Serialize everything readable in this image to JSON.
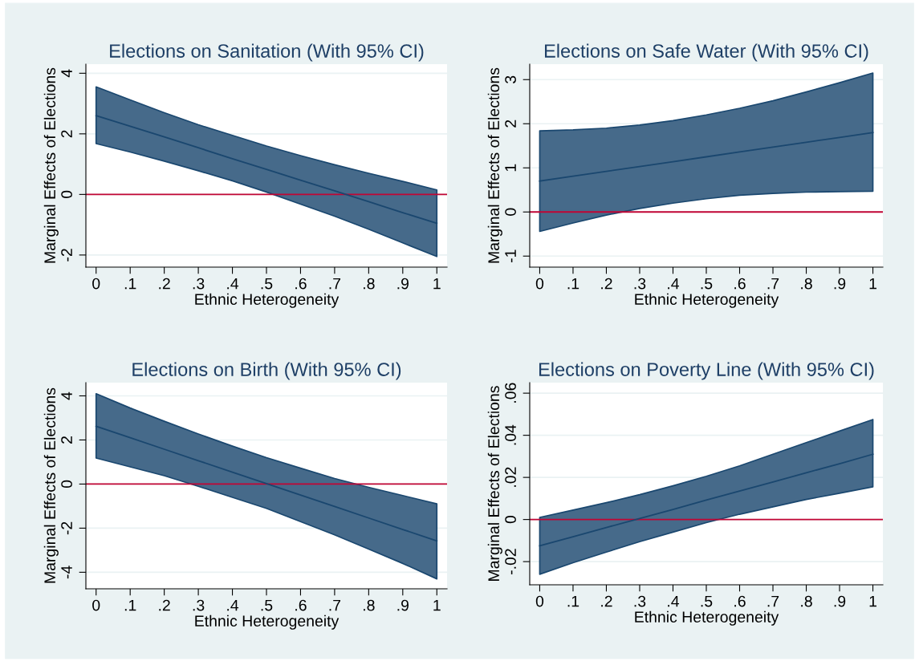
{
  "chart_data": [
    {
      "type": "line",
      "title": "Elections on Sanitation (With 95% CI)",
      "xlabel": "Ethnic Heterogeneity",
      "ylabel": "Marginal Effects of Elections",
      "x": [
        0,
        0.1,
        0.2,
        0.3,
        0.4,
        0.5,
        0.6,
        0.7,
        0.8,
        0.9,
        1
      ],
      "series": [
        {
          "color": "#1a476f",
          "values": [
            2.6,
            2.25,
            1.9,
            1.54,
            1.18,
            0.83,
            0.47,
            0.12,
            -0.24,
            -0.6,
            -0.95
          ],
          "upper": [
            3.55,
            3.12,
            2.7,
            2.3,
            1.95,
            1.6,
            1.28,
            0.98,
            0.7,
            0.43,
            0.15
          ],
          "lower": [
            1.68,
            1.4,
            1.1,
            0.78,
            0.45,
            0.08,
            -0.32,
            -0.72,
            -1.15,
            -1.6,
            -2.05
          ]
        }
      ],
      "xlim": [
        -0.03,
        1.03
      ],
      "ylim": [
        -2.4,
        4.3
      ],
      "xticks": [
        0,
        {
          "value": 0.1,
          "label": ".1"
        },
        {
          "value": 0.2,
          "label": ".2"
        },
        {
          "value": 0.3,
          "label": ".3"
        },
        {
          "value": 0.4,
          "label": ".4"
        },
        {
          "value": 0.5,
          "label": ".5"
        },
        {
          "value": 0.6,
          "label": ".6"
        },
        {
          "value": 0.7,
          "label": ".7"
        },
        {
          "value": 0.8,
          "label": ".8"
        },
        {
          "value": 0.9,
          "label": ".9"
        },
        1
      ],
      "yticks": [
        -2,
        0,
        2,
        4
      ],
      "grid": "y",
      "ref_lines": [
        {
          "axis": "y",
          "value": 0,
          "color": "#c10534"
        }
      ]
    },
    {
      "type": "line",
      "title": "Elections on Safe Water (With 95% CI)",
      "xlabel": "Ethnic Heterogeneity",
      "ylabel": "Marginal Effects of Elections",
      "x": [
        0,
        0.1,
        0.2,
        0.3,
        0.4,
        0.5,
        0.6,
        0.7,
        0.8,
        0.9,
        1
      ],
      "series": [
        {
          "color": "#1a476f",
          "values": [
            0.7,
            0.81,
            0.92,
            1.03,
            1.14,
            1.25,
            1.36,
            1.47,
            1.58,
            1.69,
            1.8
          ],
          "upper": [
            1.84,
            1.86,
            1.9,
            1.97,
            2.07,
            2.2,
            2.35,
            2.52,
            2.72,
            2.93,
            3.15
          ],
          "lower": [
            -0.44,
            -0.25,
            -0.07,
            0.08,
            0.2,
            0.3,
            0.38,
            0.42,
            0.45,
            0.46,
            0.47
          ]
        }
      ],
      "xlim": [
        -0.03,
        1.03
      ],
      "ylim": [
        -1.25,
        3.35
      ],
      "xticks": [
        0,
        {
          "value": 0.1,
          "label": ".1"
        },
        {
          "value": 0.2,
          "label": ".2"
        },
        {
          "value": 0.3,
          "label": ".3"
        },
        {
          "value": 0.4,
          "label": ".4"
        },
        {
          "value": 0.5,
          "label": ".5"
        },
        {
          "value": 0.6,
          "label": ".6"
        },
        {
          "value": 0.7,
          "label": ".7"
        },
        {
          "value": 0.8,
          "label": ".8"
        },
        {
          "value": 0.9,
          "label": ".9"
        },
        1
      ],
      "yticks": [
        -1,
        0,
        1,
        2,
        3
      ],
      "grid": "y",
      "ref_lines": [
        {
          "axis": "y",
          "value": 0,
          "color": "#c10534"
        }
      ]
    },
    {
      "type": "line",
      "title": "Elections on Birth (With 95% CI)",
      "xlabel": "Ethnic Heterogeneity",
      "ylabel": "Marginal Effects of Elections",
      "x": [
        0,
        0.1,
        0.2,
        0.3,
        0.4,
        0.5,
        0.6,
        0.7,
        0.8,
        0.9,
        1
      ],
      "series": [
        {
          "color": "#1a476f",
          "values": [
            2.62,
            2.1,
            1.58,
            1.06,
            0.54,
            0.02,
            -0.5,
            -1.02,
            -1.54,
            -2.06,
            -2.58
          ],
          "upper": [
            4.1,
            3.45,
            2.85,
            2.27,
            1.72,
            1.2,
            0.72,
            0.25,
            -0.15,
            -0.52,
            -0.9
          ],
          "lower": [
            1.18,
            0.78,
            0.38,
            -0.1,
            -0.6,
            -1.1,
            -1.7,
            -2.3,
            -2.95,
            -3.6,
            -4.3
          ]
        }
      ],
      "xlim": [
        -0.03,
        1.03
      ],
      "ylim": [
        -4.75,
        4.6
      ],
      "xticks": [
        0,
        {
          "value": 0.1,
          "label": ".1"
        },
        {
          "value": 0.2,
          "label": ".2"
        },
        {
          "value": 0.3,
          "label": ".3"
        },
        {
          "value": 0.4,
          "label": ".4"
        },
        {
          "value": 0.5,
          "label": ".5"
        },
        {
          "value": 0.6,
          "label": ".6"
        },
        {
          "value": 0.7,
          "label": ".7"
        },
        {
          "value": 0.8,
          "label": ".8"
        },
        {
          "value": 0.9,
          "label": ".9"
        },
        1
      ],
      "yticks": [
        -4,
        -2,
        0,
        2,
        4
      ],
      "grid": "y",
      "ref_lines": [
        {
          "axis": "y",
          "value": 0,
          "color": "#c10534"
        }
      ]
    },
    {
      "type": "line",
      "title": "Elections on Poverty Line (With 95% CI)",
      "xlabel": "Ethnic Heterogeneity",
      "ylabel": "Marginal Effects of Elections",
      "x": [
        0,
        0.1,
        0.2,
        0.3,
        0.4,
        0.5,
        0.6,
        0.7,
        0.8,
        0.9,
        1
      ],
      "series": [
        {
          "color": "#1a476f",
          "values": [
            -0.0125,
            -0.0082,
            -0.0038,
            0.0005,
            0.0048,
            0.0092,
            0.0135,
            0.0178,
            0.0222,
            0.0265,
            0.031
          ],
          "upper": [
            0.001,
            0.0045,
            0.008,
            0.0118,
            0.016,
            0.0205,
            0.0255,
            0.031,
            0.0365,
            0.042,
            0.0475
          ],
          "lower": [
            -0.026,
            -0.0205,
            -0.0155,
            -0.0105,
            -0.006,
            -0.0015,
            0.0025,
            0.006,
            0.0095,
            0.0125,
            0.0155
          ]
        }
      ],
      "xlim": [
        -0.03,
        1.03
      ],
      "ylim": [
        -0.031,
        0.065
      ],
      "xticks": [
        0,
        {
          "value": 0.1,
          "label": ".1"
        },
        {
          "value": 0.2,
          "label": ".2"
        },
        {
          "value": 0.3,
          "label": ".3"
        },
        {
          "value": 0.4,
          "label": ".4"
        },
        {
          "value": 0.5,
          "label": ".5"
        },
        {
          "value": 0.6,
          "label": ".6"
        },
        {
          "value": 0.7,
          "label": ".7"
        },
        {
          "value": 0.8,
          "label": ".8"
        },
        {
          "value": 0.9,
          "label": ".9"
        },
        1
      ],
      "yticks": [
        {
          "value": -0.02,
          "label": "-.02"
        },
        0,
        {
          "value": 0.02,
          "label": ".02"
        },
        {
          "value": 0.04,
          "label": ".04"
        },
        {
          "value": 0.06,
          "label": ".06"
        }
      ],
      "grid": "y",
      "ref_lines": [
        {
          "axis": "y",
          "value": 0,
          "color": "#c10534"
        }
      ]
    }
  ]
}
